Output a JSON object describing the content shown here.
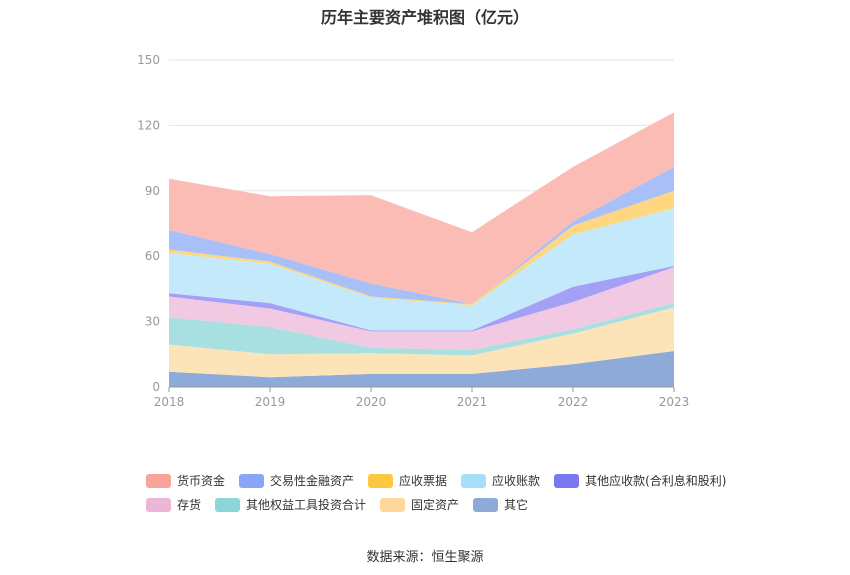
{
  "chart_data": {
    "type": "area",
    "stacked": true,
    "title": "历年主要资产堆积图（亿元）",
    "source": "数据来源：恒生聚源",
    "x": [
      "2018",
      "2019",
      "2020",
      "2021",
      "2022",
      "2023"
    ],
    "ylim": [
      0,
      150
    ],
    "yticks": [
      "0",
      "30",
      "60",
      "90",
      "120",
      "150"
    ],
    "grid": true,
    "legend_position": "bottom",
    "series": [
      {
        "name": "其它",
        "values": [
          7,
          4.5,
          6,
          6,
          10.5,
          16.5
        ],
        "color": "#8eaad9",
        "legend_color": "#8eaad9"
      },
      {
        "name": "固定资产",
        "values": [
          12.5,
          10.5,
          9.5,
          8.5,
          14,
          20
        ],
        "color": "#fde3b8",
        "legend_color": "#fdd89a"
      },
      {
        "name": "其他权益工具投资合计",
        "values": [
          12.5,
          12.5,
          2.5,
          2.5,
          2,
          2
        ],
        "color": "#a8e0e2",
        "legend_color": "#8ad6d8"
      },
      {
        "name": "存货",
        "values": [
          9.5,
          8.5,
          7.5,
          8.5,
          12.5,
          16.5
        ],
        "color": "#f1c9e2",
        "legend_color": "#ecb6d7"
      },
      {
        "name": "其他应收款(合利息和股利)",
        "values": [
          1.5,
          2.5,
          0.5,
          0.5,
          7,
          0.5
        ],
        "color": "#a3a0f5",
        "legend_color": "#7b78ef"
      },
      {
        "name": "应收账款",
        "values": [
          18.5,
          18,
          15,
          11.5,
          24,
          26.5
        ],
        "color": "#c4e9fb",
        "legend_color": "#a8dff8"
      },
      {
        "name": "应收票据",
        "values": [
          1.5,
          1,
          0.5,
          0.5,
          4,
          8
        ],
        "color": "#fed780",
        "legend_color": "#fdc741"
      },
      {
        "name": "交易性金融资产",
        "values": [
          9,
          3.5,
          6,
          0,
          2,
          11
        ],
        "color": "#a9bff8",
        "legend_color": "#89a5f6"
      },
      {
        "name": "货币资金",
        "values": [
          23.5,
          26.5,
          40.5,
          33,
          25,
          25
        ],
        "color": "#fcbcb6",
        "legend_color": "#f9a49b"
      }
    ]
  },
  "legend_rows": [
    [
      "货币资金",
      "交易性金融资产",
      "应收票据",
      "应收账款",
      "其他应收款(合利息和股利)"
    ],
    [
      "存货",
      "其他权益工具投资合计",
      "固定资产",
      "其它"
    ]
  ]
}
